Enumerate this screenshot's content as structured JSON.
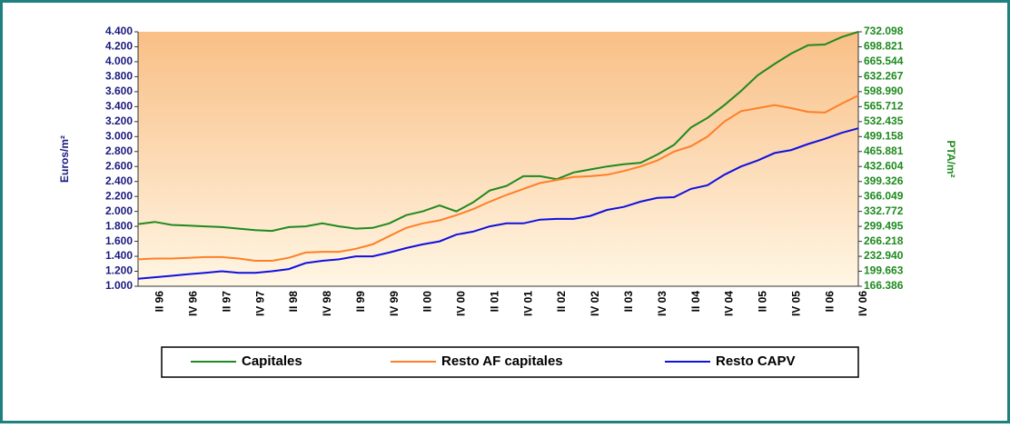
{
  "chart_data": {
    "type": "line",
    "categories": [
      null,
      "II 96",
      null,
      "IV 96",
      null,
      "II 97",
      null,
      "IV 97",
      null,
      "II 98",
      null,
      "IV 98",
      null,
      "II 99",
      null,
      "IV 99",
      null,
      "II 00",
      null,
      "IV 00",
      null,
      "II 01",
      null,
      "IV 01",
      null,
      "II 02",
      null,
      "IV 02",
      null,
      "II 03",
      null,
      "IV 03",
      null,
      "II 04",
      null,
      "IV 04",
      null,
      "II 05",
      null,
      "IV 05",
      null,
      "II 06",
      null,
      "IV 06"
    ],
    "y_label": "Euros/m²",
    "y2_label": "PTA/m²",
    "ylim": [
      1000,
      4400
    ],
    "yticks": [
      {
        "value": 1000,
        "label": "1.000"
      },
      {
        "value": 1200,
        "label": "1.200"
      },
      {
        "value": 1400,
        "label": "1.400"
      },
      {
        "value": 1600,
        "label": "1.600"
      },
      {
        "value": 1800,
        "label": "1.800"
      },
      {
        "value": 2000,
        "label": "2.000"
      },
      {
        "value": 2200,
        "label": "2.200"
      },
      {
        "value": 2400,
        "label": "2.400"
      },
      {
        "value": 2600,
        "label": "2.600"
      },
      {
        "value": 2800,
        "label": "2.800"
      },
      {
        "value": 3000,
        "label": "3.000"
      },
      {
        "value": 3200,
        "label": "3.200"
      },
      {
        "value": 3400,
        "label": "3.400"
      },
      {
        "value": 3600,
        "label": "3.600"
      },
      {
        "value": 3800,
        "label": "3.800"
      },
      {
        "value": 4000,
        "label": "4.000"
      },
      {
        "value": 4200,
        "label": "4.200"
      },
      {
        "value": 4400,
        "label": "4.400"
      }
    ],
    "y2lim": [
      166386,
      732098
    ],
    "y2ticks": [
      {
        "value": 166386,
        "label": "166.386"
      },
      {
        "value": 199663,
        "label": "199.663"
      },
      {
        "value": 232940,
        "label": "232.940"
      },
      {
        "value": 266218,
        "label": "266.218"
      },
      {
        "value": 299495,
        "label": "299.495"
      },
      {
        "value": 332772,
        "label": "332.772"
      },
      {
        "value": 366049,
        "label": "366.049"
      },
      {
        "value": 399326,
        "label": "399.326"
      },
      {
        "value": 432604,
        "label": "432.604"
      },
      {
        "value": 465881,
        "label": "465.881"
      },
      {
        "value": 499158,
        "label": "499.158"
      },
      {
        "value": 532435,
        "label": "532.435"
      },
      {
        "value": 565712,
        "label": "565.712"
      },
      {
        "value": 598990,
        "label": "598.990"
      },
      {
        "value": 632267,
        "label": "632.267"
      },
      {
        "value": 665544,
        "label": "665.544"
      },
      {
        "value": 698821,
        "label": "698.821"
      },
      {
        "value": 732098,
        "label": "732.098"
      }
    ],
    "series": [
      {
        "name": "Capitales",
        "color": "#1f8a1f",
        "values": [
          1830,
          1860,
          1820,
          1810,
          1800,
          1790,
          1770,
          1750,
          1740,
          1790,
          1800,
          1840,
          1800,
          1770,
          1780,
          1840,
          1950,
          2000,
          2080,
          2000,
          2120,
          2280,
          2340,
          2470,
          2470,
          2430,
          2520,
          2560,
          2600,
          2630,
          2650,
          2760,
          2890,
          3120,
          3250,
          3420,
          3610,
          3820,
          3970,
          4110,
          4220,
          4230,
          4330,
          4400
        ]
      },
      {
        "name": "Resto AF capitales",
        "color": "#ff7f27",
        "values": [
          1360,
          1370,
          1370,
          1380,
          1390,
          1390,
          1370,
          1340,
          1340,
          1380,
          1450,
          1460,
          1460,
          1500,
          1560,
          1670,
          1780,
          1840,
          1880,
          1950,
          2030,
          2130,
          2220,
          2300,
          2380,
          2420,
          2460,
          2470,
          2490,
          2540,
          2600,
          2680,
          2800,
          2870,
          3000,
          3200,
          3340,
          3380,
          3420,
          3380,
          3330,
          3320,
          3440,
          3550
        ]
      },
      {
        "name": "Resto CAPV",
        "color": "#1010e0",
        "values": [
          1100,
          1120,
          1140,
          1160,
          1180,
          1200,
          1180,
          1180,
          1200,
          1230,
          1310,
          1340,
          1360,
          1400,
          1400,
          1450,
          1510,
          1560,
          1600,
          1690,
          1730,
          1800,
          1840,
          1840,
          1890,
          1900,
          1900,
          1940,
          2020,
          2060,
          2130,
          2180,
          2190,
          2300,
          2350,
          2490,
          2600,
          2680,
          2780,
          2820,
          2900,
          2970,
          3050,
          3110
        ]
      }
    ]
  }
}
